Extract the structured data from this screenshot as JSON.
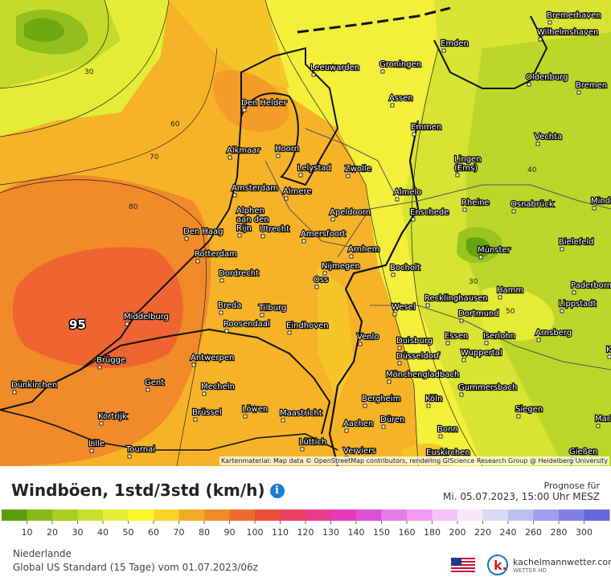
{
  "map": {
    "attribution": "Kartenmaterial: Map data © OpenStreetMap contributors, rendering GIScience Research Group @ Heidelberg University",
    "max_label": "95",
    "isoline_labels": [
      "30",
      "60",
      "70",
      "80",
      "30",
      "40",
      "50"
    ],
    "cities": [
      "Bremerhaven",
      "Wilhelmshaven",
      "Emden",
      "Oldenburg",
      "Bremen",
      "Leeuwarden",
      "Groningen",
      "Assen",
      "Den Helder",
      "Emmen",
      "Vechta",
      "Alkmaar",
      "Hoorn",
      "Lelystad",
      "Zwolle",
      "Lingen (Ems)",
      "Amsterdam",
      "Almere",
      "Almelo",
      "Rheine",
      "Osnabrück",
      "Minden",
      "Alphen aan den Rijn",
      "Utrecht",
      "Apeldoorn",
      "Enschede",
      "Den Haag",
      "Amersfoort",
      "Bielefeld",
      "Rotterdam",
      "Arnhem",
      "Münster",
      "Nijmegen",
      "Bocholt",
      "Dordrecht",
      "Oss",
      "Hamm",
      "Paderborn",
      "Recklinghausen",
      "Dortmund",
      "Lippstadt",
      "Breda",
      "Tilburg",
      "Wesel",
      "Middelburg",
      "Roosendaal",
      "Eindhoven",
      "Venlo",
      "Duisburg",
      "Essen",
      "Iserlohn",
      "Arnsberg",
      "Brügge",
      "Antwerpen",
      "Düsseldorf",
      "Wuppertal",
      "Korbach",
      "Gent",
      "Mönchengladbach",
      "Dünkirchen",
      "Mecheln",
      "Gummersbach",
      "Bergheim",
      "Köln",
      "Kortrijk",
      "Brüssel",
      "Löwen",
      "Maastricht",
      "Aachen",
      "Düren",
      "Siegen",
      "Marburg",
      "Bonn",
      "Lille",
      "Tournai",
      "Lüttich",
      "Verviers",
      "Euskirchen",
      "Gießen"
    ]
  },
  "header": {
    "title": "Windböen, 1std/3std (km/h)",
    "info_icon": "info-icon",
    "forecast_label": "Prognose für",
    "forecast_date": "Mi. 05.07.2023, 15:00 Uhr MESZ"
  },
  "legend": {
    "unit": "km/h",
    "labels": [
      "10",
      "20",
      "30",
      "40",
      "50",
      "60",
      "70",
      "80",
      "90",
      "100",
      "110",
      "120",
      "130",
      "140",
      "150",
      "160",
      "180",
      "200",
      "220",
      "240",
      "260",
      "280",
      "300"
    ],
    "colors": [
      "#5e9b0a",
      "#86bb16",
      "#a8ce22",
      "#c7df2e",
      "#e5ee36",
      "#fbf92e",
      "#f7d327",
      "#f4ac25",
      "#f08b28",
      "#ee6b2c",
      "#ec4f33",
      "#ec3f5e",
      "#ea3a8c",
      "#e63bb7",
      "#e04fd8",
      "#e87ce7",
      "#f19af0",
      "#f7c3f7",
      "#f8e8f8",
      "#d9daf5",
      "#bdbff1",
      "#9f9fea",
      "#7f80e3",
      "#6667dc"
    ]
  },
  "footer": {
    "region": "Niederlande",
    "model": "Global US Standard  (15 Tage)  vom 01.07.2023/06z",
    "flag_icon": "us-flag-icon",
    "brand_name": "kachelmannwetter.com",
    "brand_sub": "WETTER HD",
    "brand_icon": "kachelmann-k-logo-icon"
  }
}
